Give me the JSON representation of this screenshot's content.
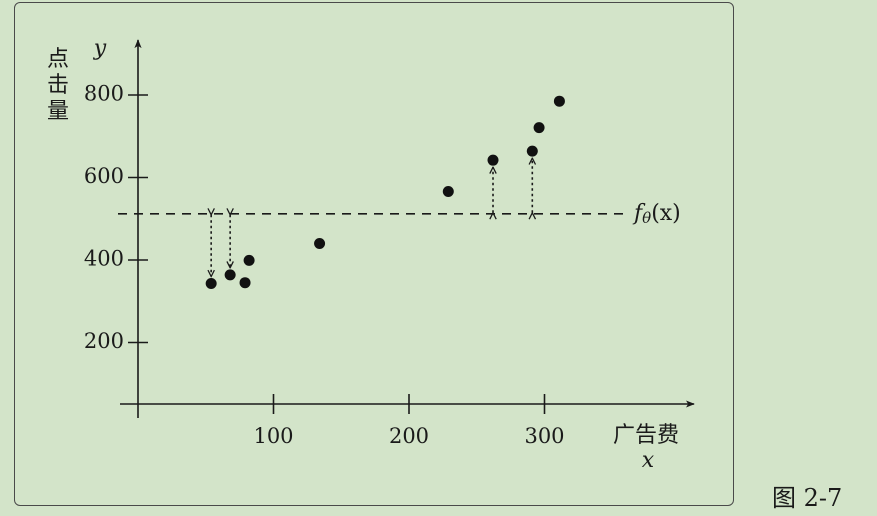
{
  "caption": "图 2-7",
  "chart_data": {
    "type": "scatter",
    "xlabel": "广告费",
    "x_symbol": "x",
    "ylabel": "点击量",
    "y_symbol": "y",
    "xlim": [
      0,
      410
    ],
    "ylim": [
      50,
      900
    ],
    "x_ticks": [
      100,
      200,
      300
    ],
    "y_ticks": [
      200,
      400,
      600,
      800
    ],
    "points": [
      {
        "x": 54,
        "y": 343
      },
      {
        "x": 68,
        "y": 364
      },
      {
        "x": 79,
        "y": 345
      },
      {
        "x": 82,
        "y": 399
      },
      {
        "x": 134,
        "y": 440
      },
      {
        "x": 229,
        "y": 566
      },
      {
        "x": 262,
        "y": 642
      },
      {
        "x": 291,
        "y": 664
      },
      {
        "x": 296,
        "y": 721
      },
      {
        "x": 311,
        "y": 785
      }
    ],
    "model_line": {
      "label": "fθ(x)",
      "name": "f",
      "subscript": "θ",
      "arg": "(x)",
      "y": 512,
      "style": "dashed"
    },
    "residual_arrows": [
      {
        "x": 54,
        "from": 512,
        "to": 343
      },
      {
        "x": 68,
        "from": 512,
        "to": 364
      },
      {
        "x": 262,
        "from": 512,
        "to": 642
      },
      {
        "x": 291,
        "from": 512,
        "to": 664
      }
    ],
    "grid": false,
    "legend": "none"
  }
}
